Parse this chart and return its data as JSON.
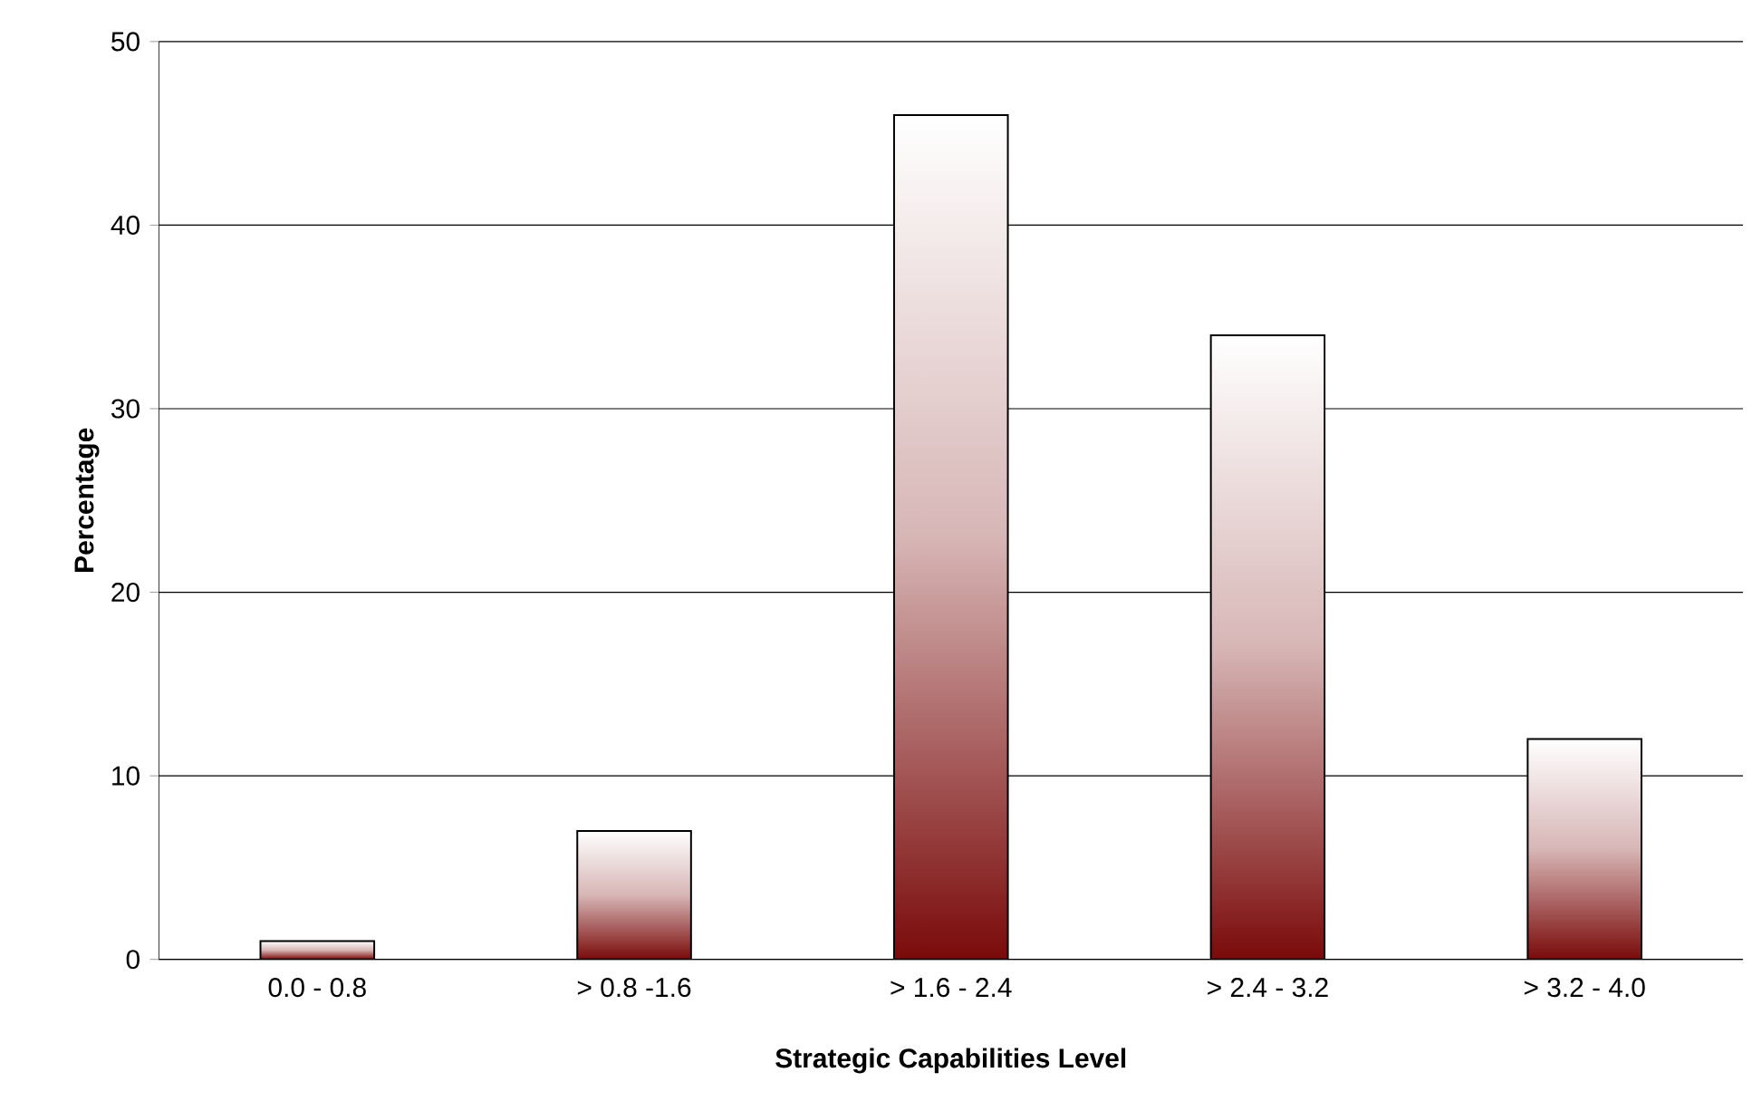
{
  "chart_data": {
    "type": "bar",
    "xlabel": "Strategic Capabilities Level",
    "ylabel": "Percentage",
    "categories": [
      "0.0 - 0.8",
      "> 0.8 -1.6",
      "> 1.6 - 2.4",
      "> 2.4 - 3.2",
      "> 3.2 - 4.0"
    ],
    "values": [
      1,
      7,
      46,
      34,
      12
    ],
    "color": "#7a0a0a",
    "ylim": [
      0,
      50
    ],
    "yticks": [
      0,
      10,
      20,
      30,
      40,
      50
    ],
    "grid": "y"
  }
}
